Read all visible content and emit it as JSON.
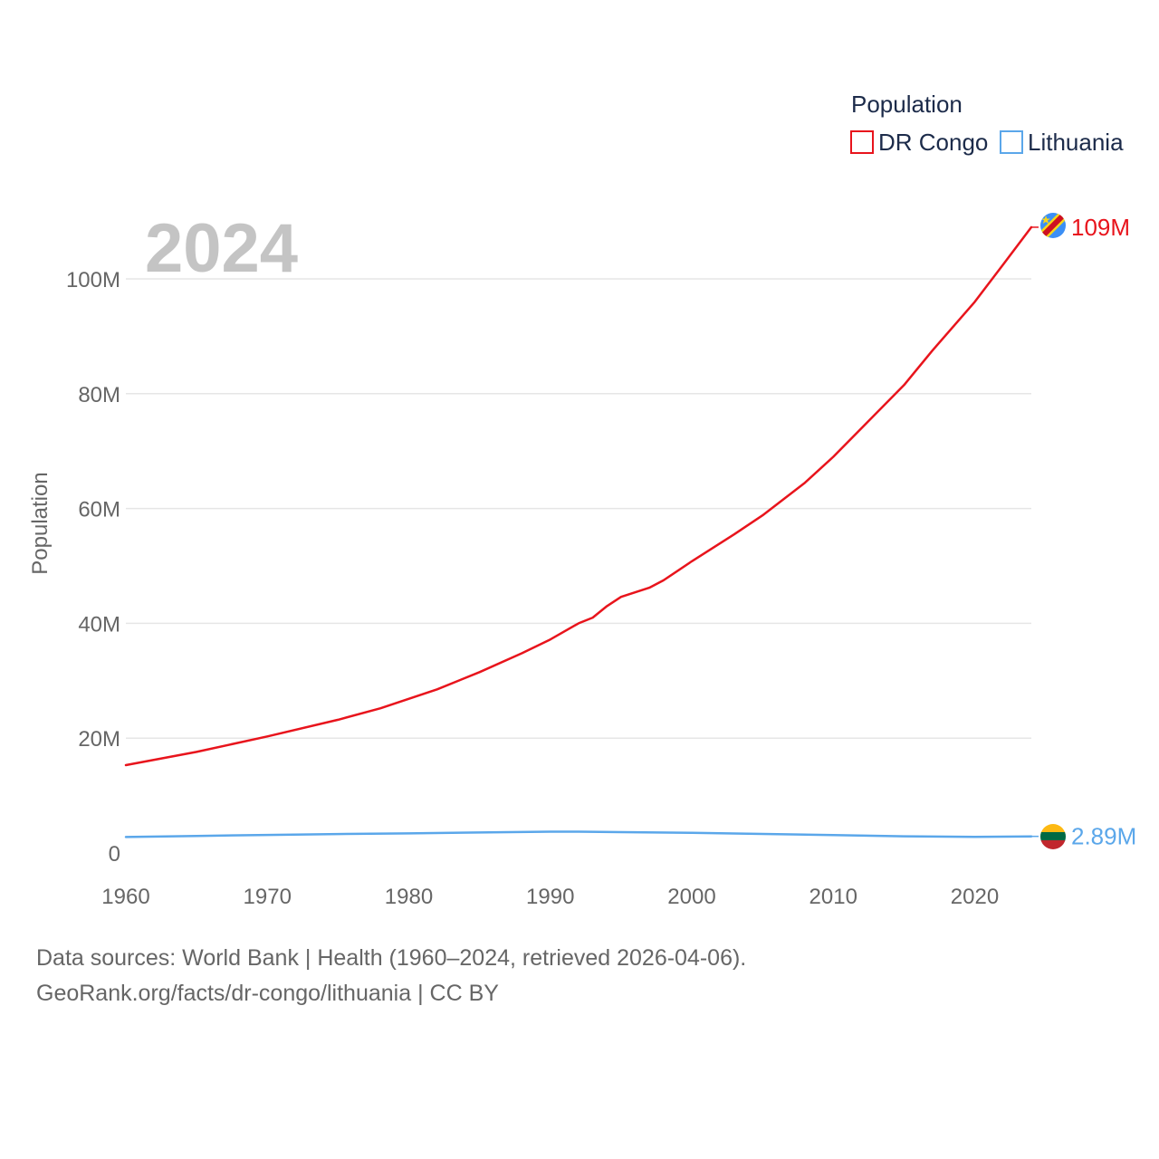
{
  "chart_data": {
    "type": "line",
    "title": "Population",
    "year_label": "2024",
    "ylabel": "Population",
    "xlim": [
      1960,
      2024
    ],
    "ylim": [
      0,
      110000000
    ],
    "x_ticks": [
      1960,
      1970,
      1980,
      1990,
      2000,
      2010,
      2020
    ],
    "y_ticks": [
      {
        "value": 0,
        "label": "0"
      },
      {
        "value": 20000000,
        "label": "20M"
      },
      {
        "value": 40000000,
        "label": "40M"
      },
      {
        "value": 60000000,
        "label": "60M"
      },
      {
        "value": 80000000,
        "label": "80M"
      },
      {
        "value": 100000000,
        "label": "100M"
      }
    ],
    "grid": true,
    "legend": {
      "title": "Population",
      "position": "top-right"
    },
    "series": [
      {
        "name": "DR Congo",
        "color": "#e8141c",
        "end_label": "109M",
        "flag": "dr-congo-flag-icon",
        "points": [
          [
            1960,
            15300000
          ],
          [
            1965,
            17600000
          ],
          [
            1970,
            20300000
          ],
          [
            1975,
            23200000
          ],
          [
            1978,
            25200000
          ],
          [
            1982,
            28500000
          ],
          [
            1985,
            31500000
          ],
          [
            1988,
            34800000
          ],
          [
            1990,
            37200000
          ],
          [
            1992,
            40000000
          ],
          [
            1993,
            41000000
          ],
          [
            1994,
            43000000
          ],
          [
            1995,
            44600000
          ],
          [
            1997,
            46200000
          ],
          [
            1998,
            47500000
          ],
          [
            2000,
            50800000
          ],
          [
            2003,
            55500000
          ],
          [
            2005,
            58800000
          ],
          [
            2008,
            64500000
          ],
          [
            2010,
            69000000
          ],
          [
            2013,
            76500000
          ],
          [
            2015,
            81500000
          ],
          [
            2017,
            87500000
          ],
          [
            2020,
            96000000
          ],
          [
            2022,
            102500000
          ],
          [
            2024,
            109000000
          ]
        ]
      },
      {
        "name": "Lithuania",
        "color": "#5ba7ea",
        "end_label": "2.89M",
        "flag": "lithuania-flag-icon",
        "points": [
          [
            1960,
            2780000
          ],
          [
            1965,
            2960000
          ],
          [
            1970,
            3140000
          ],
          [
            1975,
            3300000
          ],
          [
            1980,
            3410000
          ],
          [
            1985,
            3560000
          ],
          [
            1990,
            3700000
          ],
          [
            1992,
            3700000
          ],
          [
            1995,
            3630000
          ],
          [
            2000,
            3500000
          ],
          [
            2005,
            3320000
          ],
          [
            2010,
            3100000
          ],
          [
            2015,
            2900000
          ],
          [
            2020,
            2800000
          ],
          [
            2024,
            2890000
          ]
        ]
      }
    ]
  },
  "footer": {
    "line1": "Data sources: World Bank | Health (1960–2024, retrieved 2026-04-06).",
    "line2": "GeoRank.org/facts/dr-congo/lithuania | CC BY"
  }
}
